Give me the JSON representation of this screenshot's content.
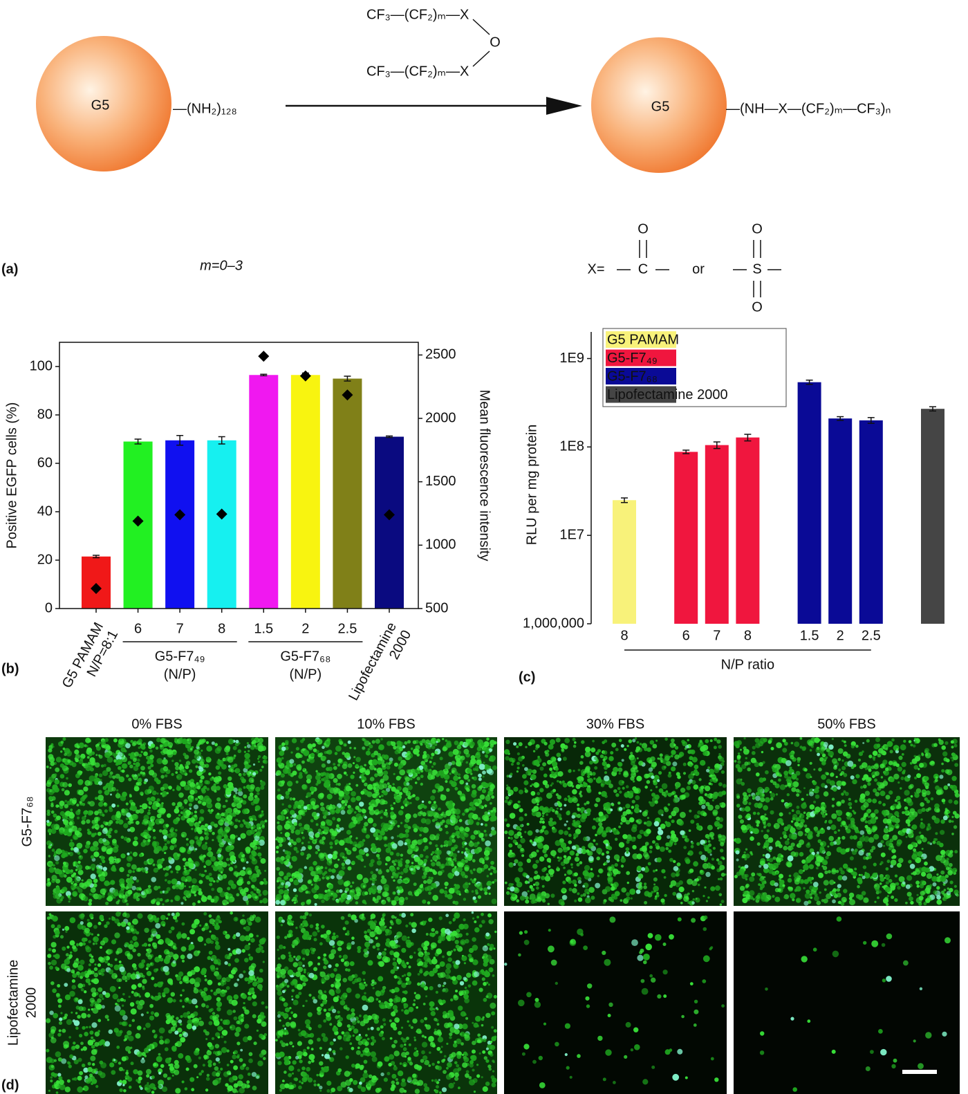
{
  "panel_labels": [
    "(a)",
    "(b)",
    "(c)",
    "(d)"
  ],
  "scheme": {
    "core_label": "G5",
    "amine": "—(NH₂)₁₂₈",
    "reagent_top": "CF₃—(CF₂)ₘ—X",
    "bridge": "O",
    "reagent_bottom": "CF₃—(CF₂)ₘ—X",
    "product_core_label": "G5",
    "product": "—(NH—X—(CF₂)ₘ—CF₃)ₙ",
    "m_range": "m=0–3",
    "x_def": "X=",
    "carbonyl": [
      "O",
      "C"
    ],
    "or": "or",
    "sulfonyl": [
      "O",
      "S",
      "O"
    ]
  },
  "chart_data": [
    {
      "type": "bar",
      "y_label": "Positive EGFP cells (%)",
      "y2_label": "Mean fluorescence intensity",
      "categories": [
        [
          "G5 PAMAM",
          "N/P=8:1"
        ],
        "6",
        "7",
        "8",
        "1.5",
        "2",
        "2.5",
        [
          "Lipofectamine",
          "2000"
        ]
      ],
      "groups": [
        [
          "G5-F7₄₉",
          "(N/P)"
        ],
        [
          "G5-F7₆₈",
          "(N/P)"
        ]
      ],
      "series": [
        {
          "values": [
            21.5,
            69,
            69.5,
            69.5,
            96.5,
            96.5,
            95,
            71
          ],
          "errors": [
            0.5,
            1,
            2,
            1.5,
            0.3,
            0.8,
            1,
            0.3
          ],
          "colors": [
            "#f01818",
            "#22f022",
            "#1010f0",
            "#16f0f0",
            "#f018f0",
            "#f8f410",
            "#808018",
            "#0a0a80"
          ]
        },
        {
          "axis": "y2",
          "marker": "diamond",
          "color": "#000000",
          "values": [
            658,
            1190,
            1240,
            1245,
            2490,
            2335,
            2185,
            1240
          ]
        }
      ],
      "ylim": [
        0,
        110
      ],
      "yticks": [
        0,
        20,
        40,
        60,
        80,
        100
      ],
      "y2lim": [
        500,
        2600
      ],
      "y2ticks": [
        500,
        1000,
        1500,
        2000,
        2500
      ]
    },
    {
      "type": "bar",
      "scale": "log",
      "y_label": "RLU per mg protein",
      "x_label": "N/P ratio",
      "legend": "top-left",
      "categories": [
        "8",
        null,
        "6",
        "7",
        "8",
        null,
        "1.5",
        "2",
        "2.5",
        null,
        null
      ],
      "series": [
        {
          "name": "G5 PAMAM",
          "color": "#f8f27a",
          "values": [
            25000000,
            null,
            null,
            null,
            null,
            null,
            null,
            null,
            null,
            null,
            null
          ],
          "errors": [
            1500000,
            null,
            null,
            null,
            null,
            null,
            null,
            null,
            null,
            null,
            null
          ]
        },
        {
          "name": "G5-F7₄₉",
          "color": "#f0163e",
          "values": [
            null,
            null,
            88000000,
            105000000,
            128000000,
            null,
            null,
            null,
            null,
            null,
            null
          ],
          "errors": [
            null,
            null,
            4000000,
            9000000,
            11000000,
            null,
            null,
            null,
            null,
            null,
            null
          ]
        },
        {
          "name": "G5-F7₆₈",
          "color": "#0a0a96",
          "values": [
            null,
            null,
            null,
            null,
            null,
            null,
            540000000,
            210000000,
            200000000,
            null,
            null
          ],
          "errors": [
            null,
            null,
            null,
            null,
            null,
            null,
            30000000,
            10000000,
            15000000,
            null,
            null
          ]
        },
        {
          "name": "Lipofectamine 2000",
          "color": "#454545",
          "values": [
            null,
            null,
            null,
            null,
            null,
            null,
            null,
            null,
            null,
            null,
            270000000
          ],
          "errors": [
            null,
            null,
            null,
            null,
            null,
            null,
            null,
            null,
            null,
            null,
            15000000
          ]
        }
      ],
      "ylim": [
        1000000,
        2000000000
      ],
      "yticks": [
        {
          "value": 1000000,
          "label": "1,000,000"
        },
        {
          "value": 10000000,
          "label": "1E7"
        },
        {
          "value": 100000000,
          "label": "1E8"
        },
        {
          "value": 1000000000,
          "label": "1E9"
        }
      ]
    }
  ],
  "micrographs": {
    "columns": [
      "0% FBS",
      "10% FBS",
      "30% FBS",
      "50% FBS"
    ],
    "rows": [
      "G5-F7₆₈",
      [
        "Lipofectamine",
        "2000"
      ]
    ]
  }
}
